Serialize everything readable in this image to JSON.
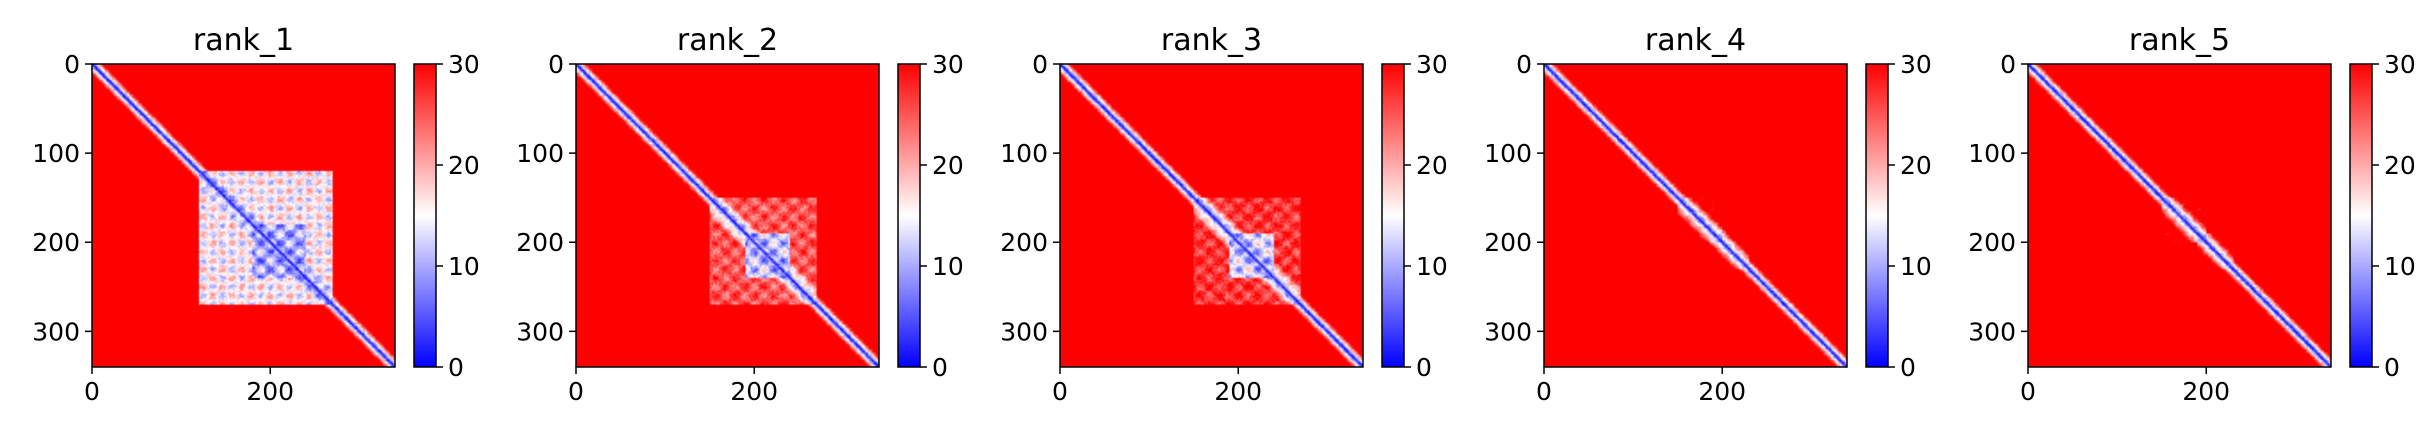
{
  "figure": {
    "background": "#ffffff",
    "colormap": "bwr",
    "colormap_colors": [
      "#0000ff",
      "#ffffff",
      "#ff0000"
    ]
  },
  "chart_data": [
    {
      "type": "heatmap",
      "title": "rank_1",
      "xlabel": "",
      "ylabel": "",
      "xlim": [
        0,
        340
      ],
      "ylim": [
        340,
        0
      ],
      "x_ticks": [
        0,
        200
      ],
      "x_tick_labels": [
        "0",
        "200"
      ],
      "y_ticks": [
        0,
        100,
        200,
        300
      ],
      "y_tick_labels": [
        "0",
        "100",
        "200",
        "300"
      ],
      "matrix_size": 340,
      "colorbar": {
        "range": [
          0,
          30
        ],
        "ticks": [
          0,
          10,
          20,
          30
        ],
        "tick_labels": [
          "0",
          "10",
          "20",
          "30"
        ]
      },
      "low_distance_regions": [
        {
          "range": [
            120,
            270
          ],
          "intensity": 0.85
        },
        {
          "range": [
            180,
            240
          ],
          "intensity": 0.95
        }
      ]
    },
    {
      "type": "heatmap",
      "title": "rank_2",
      "xlabel": "",
      "ylabel": "",
      "xlim": [
        0,
        340
      ],
      "ylim": [
        340,
        0
      ],
      "x_ticks": [
        0,
        200
      ],
      "x_tick_labels": [
        "0",
        "200"
      ],
      "y_ticks": [
        0,
        100,
        200,
        300
      ],
      "y_tick_labels": [
        "0",
        "100",
        "200",
        "300"
      ],
      "matrix_size": 340,
      "colorbar": {
        "range": [
          0,
          30
        ],
        "ticks": [
          0,
          10,
          20,
          30
        ],
        "tick_labels": [
          "0",
          "10",
          "20",
          "30"
        ]
      },
      "low_distance_regions": [
        {
          "range": [
            150,
            270
          ],
          "intensity": 0.6
        },
        {
          "range": [
            190,
            240
          ],
          "intensity": 0.85
        }
      ]
    },
    {
      "type": "heatmap",
      "title": "rank_3",
      "xlabel": "",
      "ylabel": "",
      "xlim": [
        0,
        340
      ],
      "ylim": [
        340,
        0
      ],
      "x_ticks": [
        0,
        200
      ],
      "x_tick_labels": [
        "0",
        "200"
      ],
      "y_ticks": [
        0,
        100,
        200,
        300
      ],
      "y_tick_labels": [
        "0",
        "100",
        "200",
        "300"
      ],
      "matrix_size": 340,
      "colorbar": {
        "range": [
          0,
          30
        ],
        "ticks": [
          0,
          10,
          20,
          30
        ],
        "tick_labels": [
          "0",
          "10",
          "20",
          "30"
        ]
      },
      "low_distance_regions": [
        {
          "range": [
            150,
            270
          ],
          "intensity": 0.55
        },
        {
          "range": [
            190,
            240
          ],
          "intensity": 0.8
        }
      ]
    },
    {
      "type": "heatmap",
      "title": "rank_4",
      "xlabel": "",
      "ylabel": "",
      "xlim": [
        0,
        340
      ],
      "ylim": [
        340,
        0
      ],
      "x_ticks": [
        0,
        200
      ],
      "x_tick_labels": [
        "0",
        "200"
      ],
      "y_ticks": [
        0,
        100,
        200,
        300
      ],
      "y_tick_labels": [
        "0",
        "100",
        "200",
        "300"
      ],
      "matrix_size": 340,
      "colorbar": {
        "range": [
          0,
          30
        ],
        "ticks": [
          0,
          10,
          20,
          30
        ],
        "tick_labels": [
          "0",
          "10",
          "20",
          "30"
        ]
      },
      "low_distance_regions": [
        {
          "range": [
            150,
            200
          ],
          "intensity": 0.4
        },
        {
          "range": [
            185,
            230
          ],
          "intensity": 0.35
        }
      ]
    },
    {
      "type": "heatmap",
      "title": "rank_5",
      "xlabel": "",
      "ylabel": "",
      "xlim": [
        0,
        340
      ],
      "ylim": [
        340,
        0
      ],
      "x_ticks": [
        0,
        200
      ],
      "x_tick_labels": [
        "0",
        "200"
      ],
      "y_ticks": [
        0,
        100,
        200,
        300
      ],
      "y_tick_labels": [
        "0",
        "100",
        "200",
        "300"
      ],
      "matrix_size": 340,
      "colorbar": {
        "range": [
          0,
          30
        ],
        "ticks": [
          0,
          10,
          20,
          30
        ],
        "tick_labels": [
          "0",
          "10",
          "20",
          "30"
        ]
      },
      "low_distance_regions": [
        {
          "range": [
            150,
            200
          ],
          "intensity": 0.4
        },
        {
          "range": [
            190,
            230
          ],
          "intensity": 0.3
        }
      ]
    }
  ]
}
